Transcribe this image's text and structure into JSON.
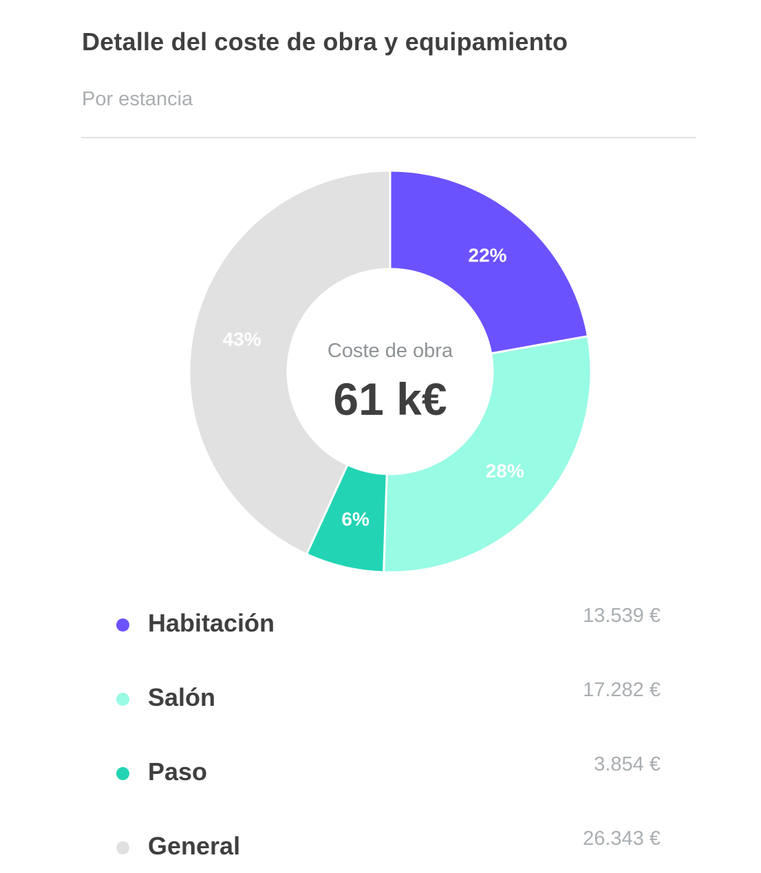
{
  "header": {
    "title": "Detalle del coste de obra y equipamiento",
    "subtitle": "Por estancia"
  },
  "center": {
    "label": "Coste de obra",
    "value": "61 k€"
  },
  "chart_data": {
    "type": "pie",
    "donut": true,
    "categories": [
      "Habitación",
      "Salón",
      "Paso",
      "General"
    ],
    "values": [
      13539,
      17282,
      3854,
      26343
    ],
    "value_labels": [
      "13.539 €",
      "17.282 €",
      "3.854 €",
      "26.343 €"
    ],
    "percent_labels": [
      "22%",
      "28%",
      "6%",
      "43%"
    ],
    "colors": [
      "#6b52ff",
      "#98fbe3",
      "#22d4b4",
      "#e1e1e1"
    ],
    "title": "Detalle del coste de obra y equipamiento",
    "subtitle": "Por estancia",
    "legend": "bottom"
  }
}
